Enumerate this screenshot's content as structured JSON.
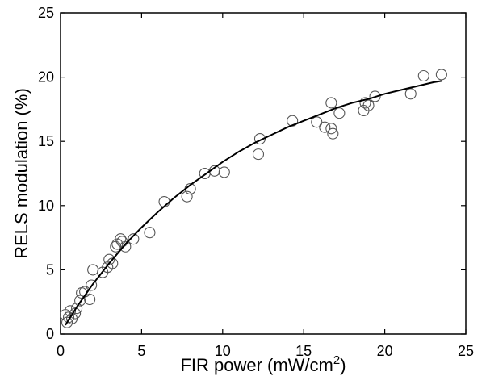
{
  "chart_data": {
    "type": "scatter",
    "xlabel": "FIR power (mW/cm",
    "xlabel_superscript": "2",
    "xlabel_suffix": ")",
    "ylabel": "RELS modulation (%)",
    "xlim": [
      0,
      25
    ],
    "ylim": [
      0,
      25
    ],
    "xticks": [
      "0",
      "5",
      "10",
      "15",
      "20",
      "25"
    ],
    "yticks": [
      "0",
      "5",
      "10",
      "15",
      "20",
      "25"
    ],
    "grid": false,
    "marker": "open-circle",
    "series": [
      {
        "type": "scatter",
        "x": [
          0.3,
          0.4,
          0.5,
          0.6,
          0.7,
          0.9,
          1.0,
          1.2,
          1.3,
          1.5,
          1.8,
          1.9,
          2.0,
          2.6,
          2.9,
          3.0,
          3.2,
          3.4,
          3.5,
          3.7,
          3.8,
          4.0,
          4.5,
          5.5,
          6.4,
          7.8,
          8.0,
          8.9,
          9.5,
          10.1,
          12.2,
          12.3,
          14.3,
          15.8,
          16.3,
          16.7,
          16.7,
          16.8,
          17.2,
          18.7,
          18.8,
          19.0,
          19.4,
          21.6,
          22.4,
          23.5
        ],
        "y": [
          1.5,
          0.9,
          1.3,
          1.8,
          1.2,
          1.6,
          2.0,
          2.6,
          3.2,
          3.3,
          2.7,
          3.8,
          5.0,
          4.8,
          5.2,
          5.8,
          5.5,
          6.8,
          7.0,
          7.4,
          7.2,
          6.8,
          7.4,
          7.9,
          10.3,
          10.7,
          11.3,
          12.5,
          12.7,
          12.6,
          14.0,
          15.2,
          16.6,
          16.5,
          16.1,
          16.0,
          18.0,
          15.6,
          17.2,
          17.4,
          18.0,
          17.8,
          18.5,
          18.7,
          20.1,
          20.2
        ]
      },
      {
        "type": "line",
        "style": "solid",
        "x": [
          0.3,
          0.5,
          1,
          1.5,
          2,
          3,
          4,
          5,
          6,
          7,
          8,
          9,
          10,
          11,
          12,
          13,
          14,
          15,
          16,
          17,
          18,
          19,
          20,
          21,
          22,
          23,
          23.5
        ],
        "y": [
          0.7,
          1.1,
          2.1,
          3.0,
          3.9,
          5.5,
          7.0,
          8.3,
          9.5,
          10.6,
          11.6,
          12.5,
          13.4,
          14.2,
          14.9,
          15.5,
          16.1,
          16.6,
          17.1,
          17.6,
          18.0,
          18.3,
          18.7,
          19.0,
          19.3,
          19.6,
          19.7
        ]
      }
    ]
  },
  "colors": {
    "ink": "#000000",
    "background": "#ffffff"
  }
}
